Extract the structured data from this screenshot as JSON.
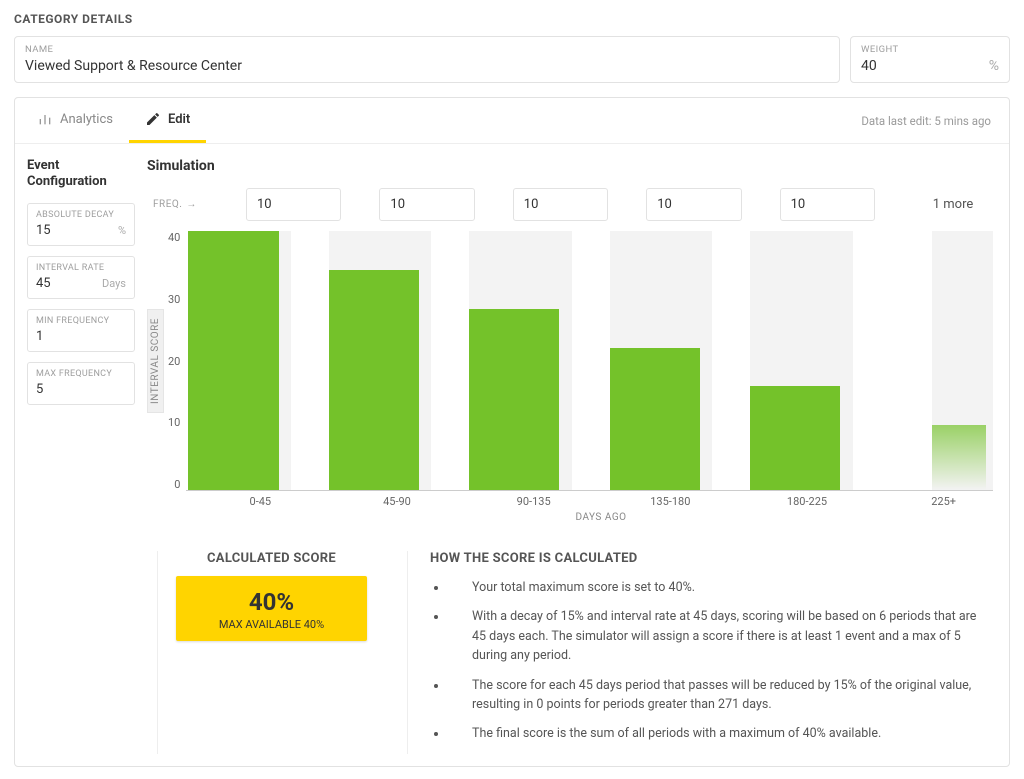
{
  "page": {
    "section_title": "CATEGORY DETAILS",
    "name_label": "NAME",
    "name_value": "Viewed Support & Resource Center",
    "weight_label": "WEIGHT",
    "weight_value": "40",
    "weight_unit": "%"
  },
  "tabs": {
    "analytics": "Analytics",
    "edit": "Edit",
    "last_edit": "Data last edit: 5 mins ago"
  },
  "config": {
    "title": "Event Configuration",
    "absolute_decay": {
      "label": "ABSOLUTE DECAY",
      "value": "15",
      "unit": "%"
    },
    "interval_rate": {
      "label": "INTERVAL RATE",
      "value": "45",
      "unit": "Days"
    },
    "min_freq": {
      "label": "MIN FREQUENCY",
      "value": "1",
      "unit": ""
    },
    "max_freq": {
      "label": "MAX FREQUENCY",
      "value": "5",
      "unit": ""
    }
  },
  "simulation": {
    "title": "Simulation",
    "freq_label": "FREQ.",
    "freq_values": [
      "10",
      "10",
      "10",
      "10",
      "10"
    ],
    "more_label": "1 more"
  },
  "chart": {
    "type": "bar",
    "y_label": "INTERVAL SCORE",
    "x_label": "DAYS AGO",
    "ylim": [
      0,
      40
    ],
    "ytick_step": 10,
    "yticks": [
      "40",
      "30",
      "20",
      "10",
      "0"
    ],
    "categories": [
      "0-45",
      "45-90",
      "90-135",
      "135-180",
      "180-225",
      "225+"
    ],
    "values": [
      40,
      34,
      28,
      22,
      16,
      10
    ],
    "fade_last": true,
    "bar_color": "#74c22a",
    "slot_bg_color": "#f3f3f3",
    "background_color": "#ffffff",
    "bar_width_pct": 88,
    "partial_last": true
  },
  "score": {
    "title": "CALCULATED SCORE",
    "percent": "40%",
    "sub": "MAX AVAILABLE 40%",
    "box_color": "#ffd400"
  },
  "explain": {
    "title": "HOW THE SCORE IS CALCULATED",
    "bullets": [
      "Your total maximum score is set to 40%.",
      "With a decay of 15% and interval rate at 45 days, scoring will be based on 6 periods that are 45 days each. The simulator will assign a score if there is at least 1 event and a max of 5 during any period.",
      "The score for each 45 days period that passes will be reduced by 15% of the original value, resulting in 0 points for periods greater than 271 days.",
      "The final score is the sum of all periods with a maximum of 40% available."
    ]
  }
}
